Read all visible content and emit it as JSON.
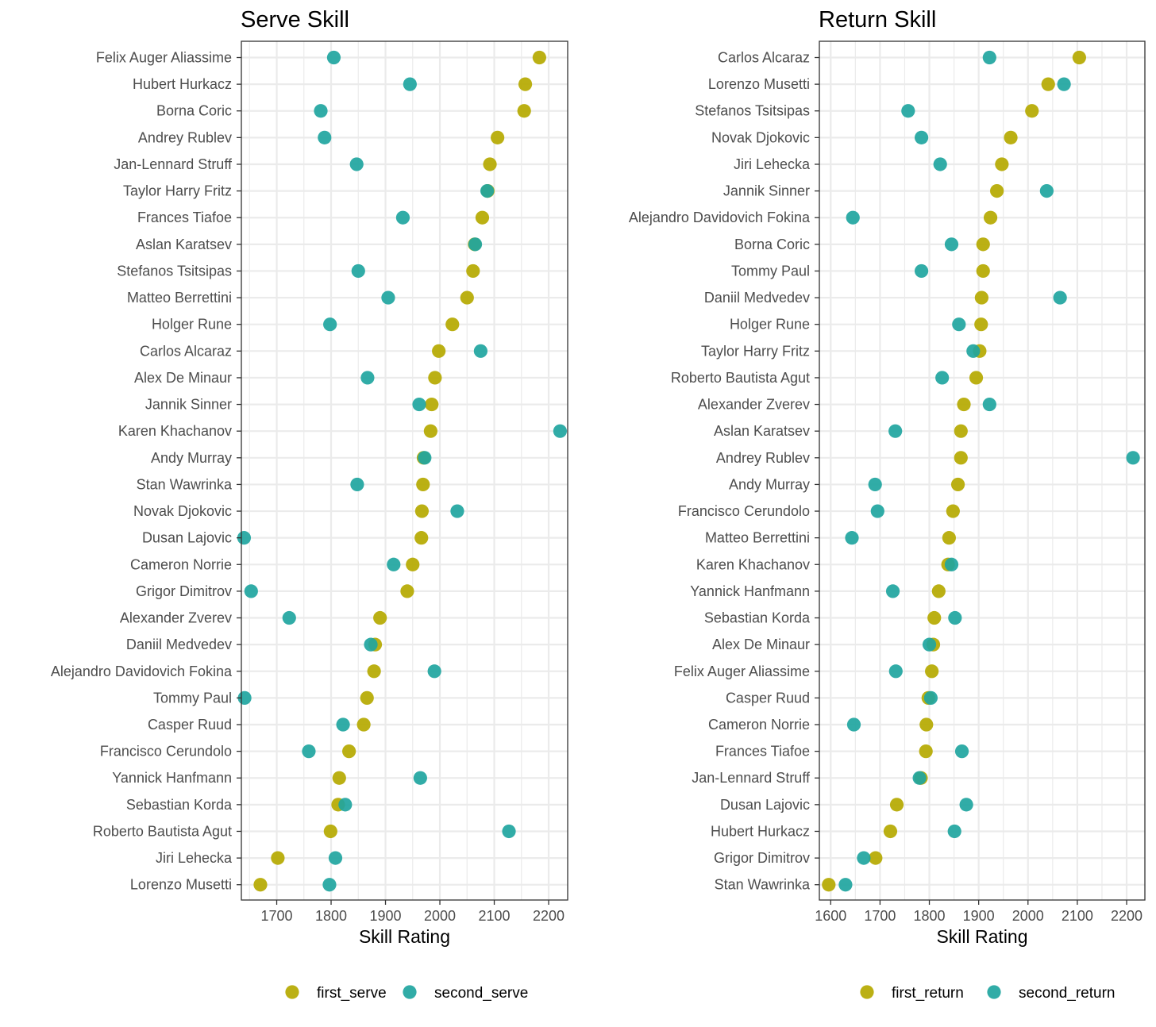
{
  "colors": {
    "first": "#b5a900",
    "second": "#1fa5a0",
    "grid": "#ebebeb",
    "frame": "#333333"
  },
  "chart_data": [
    {
      "type": "scatter",
      "title": "Serve Skill",
      "xlabel": "Skill Rating",
      "ylabel": "",
      "xlim": [
        1635,
        2235
      ],
      "xticks": [
        1700,
        1800,
        1900,
        2000,
        2100,
        2200
      ],
      "legend_position": "bottom",
      "categories": [
        "Felix Auger Aliassime",
        "Hubert Hurkacz",
        "Borna Coric",
        "Andrey Rublev",
        "Jan-Lennard Struff",
        "Taylor Harry Fritz",
        "Frances Tiafoe",
        "Aslan Karatsev",
        "Stefanos Tsitsipas",
        "Matteo Berrettini",
        "Holger Rune",
        "Carlos Alcaraz",
        "Alex De Minaur",
        "Jannik Sinner",
        "Karen Khachanov",
        "Andy Murray",
        "Stan Wawrinka",
        "Novak Djokovic",
        "Dusan Lajovic",
        "Cameron Norrie",
        "Grigor Dimitrov",
        "Alexander Zverev",
        "Daniil Medvedev",
        "Alejandro Davidovich Fokina",
        "Tommy Paul",
        "Casper Ruud",
        "Francisco Cerundolo",
        "Yannick Hanfmann",
        "Sebastian Korda",
        "Roberto Bautista Agut",
        "Jiri Lehecka",
        "Lorenzo Musetti"
      ],
      "series": [
        {
          "name": "first_serve",
          "values": [
            2183,
            2157,
            2155,
            2106,
            2092,
            2088,
            2078,
            2064,
            2061,
            2050,
            2023,
            1998,
            1991,
            1985,
            1983,
            1970,
            1969,
            1967,
            1966,
            1950,
            1940,
            1890,
            1881,
            1879,
            1866,
            1860,
            1833,
            1815,
            1813,
            1799,
            1702,
            1670
          ]
        },
        {
          "name": "second_serve",
          "values": [
            1805,
            1945,
            1781,
            1788,
            1847,
            2087,
            1932,
            2065,
            1850,
            1905,
            1798,
            2075,
            1867,
            1962,
            2221,
            1972,
            1848,
            2032,
            1640,
            1915,
            1653,
            1723,
            1873,
            1990,
            1641,
            1822,
            1759,
            1964,
            1826,
            2127,
            1808,
            1797
          ]
        }
      ]
    },
    {
      "type": "scatter",
      "title": "Return Skill",
      "xlabel": "Skill Rating",
      "ylabel": "",
      "xlim": [
        1577,
        2237
      ],
      "xticks": [
        1600,
        1700,
        1800,
        1900,
        2000,
        2100,
        2200
      ],
      "legend_position": "bottom",
      "categories": [
        "Carlos Alcaraz",
        "Lorenzo Musetti",
        "Stefanos Tsitsipas",
        "Novak Djokovic",
        "Jiri Lehecka",
        "Jannik Sinner",
        "Alejandro Davidovich Fokina",
        "Borna Coric",
        "Tommy Paul",
        "Daniil Medvedev",
        "Holger Rune",
        "Taylor Harry Fritz",
        "Roberto Bautista Agut",
        "Alexander Zverev",
        "Aslan Karatsev",
        "Andrey Rublev",
        "Andy Murray",
        "Francisco Cerundolo",
        "Matteo Berrettini",
        "Karen Khachanov",
        "Yannick Hanfmann",
        "Sebastian Korda",
        "Alex De Minaur",
        "Felix Auger Aliassime",
        "Casper Ruud",
        "Cameron Norrie",
        "Frances Tiafoe",
        "Jan-Lennard Struff",
        "Dusan Lajovic",
        "Hubert Hurkacz",
        "Grigor Dimitrov",
        "Stan Wawrinka"
      ],
      "series": [
        {
          "name": "first_return",
          "values": [
            2104,
            2041,
            2008,
            1965,
            1947,
            1937,
            1924,
            1909,
            1909,
            1906,
            1905,
            1902,
            1895,
            1870,
            1864,
            1864,
            1858,
            1848,
            1840,
            1838,
            1819,
            1810,
            1808,
            1805,
            1798,
            1794,
            1793,
            1783,
            1734,
            1721,
            1691,
            1596
          ]
        },
        {
          "name": "second_return",
          "values": [
            1922,
            2073,
            1757,
            1784,
            1822,
            2038,
            1645,
            1845,
            1784,
            2065,
            1860,
            1889,
            1826,
            1922,
            1731,
            2213,
            1690,
            1695,
            1643,
            1845,
            1726,
            1852,
            1800,
            1732,
            1803,
            1647,
            1866,
            1780,
            1875,
            1851,
            1667,
            1630
          ]
        }
      ]
    }
  ]
}
